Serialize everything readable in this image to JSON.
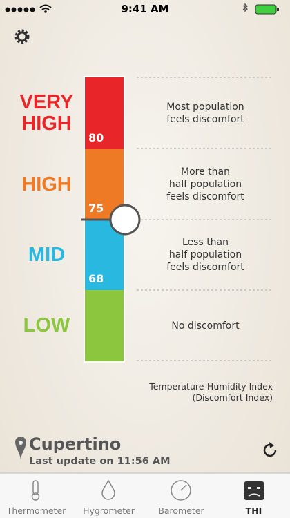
{
  "status_bar": {
    "time": "9:41 AM"
  },
  "levels": [
    {
      "label": "VERY\nHIGH",
      "color": "#e8262a",
      "threshold": 80,
      "description": "Most population\nfeels discomfort"
    },
    {
      "label": "HIGH",
      "color": "#ee7a26",
      "threshold": 75,
      "description": "More than\nhalf population\nfeels discomfort"
    },
    {
      "label": "MID",
      "color": "#29b8e0",
      "threshold": 68,
      "description": "Less than\nhalf population\nfeels discomfort"
    },
    {
      "label": "LOW",
      "color": "#8cc63f",
      "description": "No discomfort"
    }
  ],
  "footnote": "Temperature-Humidity Index\n(Discomfort Index)",
  "location": {
    "city": "Cupertino",
    "updated": "Last update on 11:56 AM"
  },
  "tabs": [
    "Thermometer",
    "Hygrometer",
    "Barometer",
    "THI"
  ]
}
